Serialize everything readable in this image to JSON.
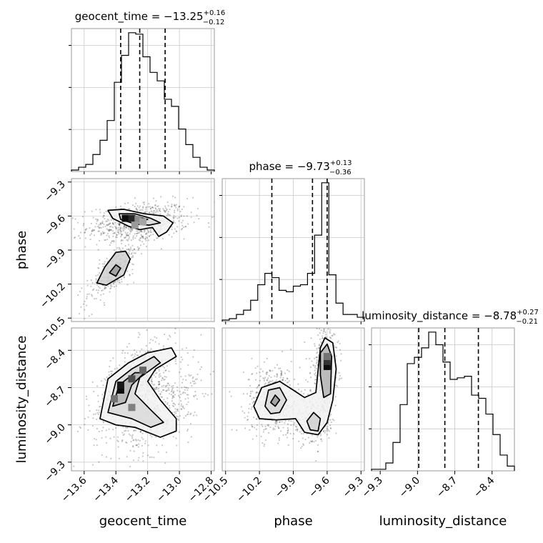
{
  "chart_data": {
    "type": "corner",
    "parameters": [
      "geocent_time",
      "phase",
      "luminosity_distance"
    ],
    "ranges": {
      "geocent_time": [
        -13.68,
        -12.78
      ],
      "phase": [
        -10.53,
        -9.27
      ],
      "luminosity_distance": [
        -9.37,
        -8.22
      ]
    },
    "ticks": {
      "geocent_time": [
        "-13.6",
        "-13.4",
        "-13.2",
        "-13.0",
        "-12.8"
      ],
      "phase": [
        "-10.5",
        "-10.2",
        "-9.9",
        "-9.6",
        "-9.3"
      ],
      "luminosity_distance": [
        "-9.3",
        "-9.0",
        "-8.7",
        "-8.4"
      ]
    },
    "axis_labels": {
      "geocent_time": "geocent_time",
      "phase": "phase",
      "luminosity_distance": "luminosity_distance"
    },
    "titles": {
      "geocent_time": {
        "name": "geocent_time",
        "median": "−13.25",
        "plus": "+0.16",
        "minus": "−0.12"
      },
      "phase": {
        "name": "phase",
        "median": "−9.73",
        "plus": "+0.13",
        "minus": "−0.36"
      },
      "luminosity_distance": {
        "name": "luminosity_distance",
        "median": "−8.78",
        "plus": "+0.27",
        "minus": "−0.21"
      }
    },
    "quantiles": {
      "geocent_time": [
        -13.37,
        -13.25,
        -13.09
      ],
      "phase": [
        -10.09,
        -9.73,
        -9.6
      ],
      "luminosity_distance": [
        -8.99,
        -8.78,
        -8.51
      ]
    },
    "histograms": {
      "geocent_time": {
        "edges": [
          -13.68,
          -13.635,
          -13.59,
          -13.545,
          -13.5,
          -13.455,
          -13.41,
          -13.365,
          -13.32,
          -13.275,
          -13.23,
          -13.185,
          -13.14,
          -13.095,
          -13.05,
          -13.005,
          -12.96,
          -12.915,
          -12.87,
          -12.825,
          -12.78
        ],
        "counts": [
          0.01,
          0.03,
          0.05,
          0.12,
          0.22,
          0.36,
          0.63,
          0.82,
          0.98,
          0.97,
          0.81,
          0.7,
          0.64,
          0.51,
          0.46,
          0.3,
          0.19,
          0.1,
          0.03,
          0.01
        ]
      },
      "phase": {
        "edges": [
          -10.53,
          -10.467,
          -10.404,
          -10.341,
          -10.278,
          -10.215,
          -10.152,
          -10.089,
          -10.026,
          -9.963,
          -9.9,
          -9.837,
          -9.774,
          -9.711,
          -9.648,
          -9.585,
          -9.522,
          -9.459,
          -9.396,
          -9.333,
          -9.27
        ],
        "counts": [
          0.01,
          0.02,
          0.05,
          0.08,
          0.15,
          0.26,
          0.34,
          0.31,
          0.22,
          0.21,
          0.25,
          0.26,
          0.34,
          0.61,
          0.98,
          0.33,
          0.13,
          0.05,
          0.05,
          0.03
        ]
      },
      "luminosity_distance": {
        "edges": [
          -9.37,
          -9.3125,
          -9.255,
          -9.1975,
          -9.14,
          -9.0825,
          -9.025,
          -8.9675,
          -8.91,
          -8.8525,
          -8.795,
          -8.7375,
          -8.68,
          -8.6225,
          -8.565,
          -8.5075,
          -8.45,
          -8.3925,
          -8.335,
          -8.2775,
          -8.22
        ],
        "counts": [
          0.01,
          0.01,
          0.05,
          0.18,
          0.42,
          0.68,
          0.72,
          0.78,
          0.88,
          0.8,
          0.69,
          0.58,
          0.59,
          0.6,
          0.48,
          0.46,
          0.36,
          0.23,
          0.1,
          0.03
        ]
      }
    },
    "pairs": [
      {
        "x": "geocent_time",
        "y": "phase",
        "cloud": [
          {
            "cx": -13.26,
            "cy": -9.66,
            "sx": 0.16,
            "sy": 0.09,
            "rho": 0.25,
            "n": 650
          },
          {
            "cx": -13.41,
            "cy": -10.08,
            "sx": 0.09,
            "sy": 0.15,
            "rho": 0.8,
            "n": 300
          }
        ],
        "blocks": [
          {
            "x": -13.34,
            "y": -9.62,
            "v": 0.95
          },
          {
            "x": -13.3,
            "y": -9.62,
            "v": 0.85
          },
          {
            "x": -13.26,
            "y": -9.63,
            "v": 0.45
          },
          {
            "x": -13.23,
            "y": -9.65,
            "v": 0.35
          },
          {
            "x": -13.28,
            "y": -9.68,
            "v": 0.4
          }
        ],
        "contours": [
          [
            [
              -13.45,
              -9.55
            ],
            [
              -13.35,
              -9.54
            ],
            [
              -13.22,
              -9.58
            ],
            [
              -13.1,
              -9.6
            ],
            [
              -13.04,
              -9.66
            ],
            [
              -13.08,
              -9.74
            ],
            [
              -13.13,
              -9.78
            ],
            [
              -13.17,
              -9.7
            ],
            [
              -13.25,
              -9.72
            ],
            [
              -13.32,
              -9.69
            ],
            [
              -13.42,
              -9.62
            ]
          ],
          [
            [
              -13.38,
              -9.58
            ],
            [
              -13.28,
              -9.58
            ],
            [
              -13.18,
              -9.62
            ],
            [
              -13.12,
              -9.66
            ],
            [
              -13.19,
              -9.68
            ],
            [
              -13.28,
              -9.67
            ],
            [
              -13.37,
              -9.63
            ]
          ],
          [
            [
              -13.36,
              -9.6
            ],
            [
              -13.28,
              -9.6
            ],
            [
              -13.2,
              -9.63
            ],
            [
              -13.25,
              -9.65
            ],
            [
              -13.33,
              -9.64
            ]
          ],
          [
            [
              -13.52,
              -10.19
            ],
            [
              -13.46,
              -10.21
            ],
            [
              -13.35,
              -10.12
            ],
            [
              -13.31,
              -9.98
            ],
            [
              -13.34,
              -9.91
            ],
            [
              -13.4,
              -9.92
            ],
            [
              -13.47,
              -10.05
            ]
          ],
          [
            [
              -13.44,
              -10.1
            ],
            [
              -13.4,
              -10.13
            ],
            [
              -13.37,
              -10.06
            ],
            [
              -13.4,
              -10.03
            ]
          ]
        ]
      },
      {
        "x": "geocent_time",
        "y": "luminosity_distance",
        "cloud": [
          {
            "cx": -13.28,
            "cy": -8.7,
            "sx": 0.13,
            "sy": 0.2,
            "rho": 0.55,
            "n": 700
          },
          {
            "cx": -13.1,
            "cy": -8.9,
            "sx": 0.12,
            "sy": 0.18,
            "rho": 0.6,
            "n": 350
          }
        ],
        "blocks": [
          {
            "x": -13.37,
            "y": -8.72,
            "v": 0.95
          },
          {
            "x": -13.37,
            "y": -8.68,
            "v": 0.9
          },
          {
            "x": -13.3,
            "y": -8.63,
            "v": 0.7
          },
          {
            "x": -13.23,
            "y": -8.56,
            "v": 0.6
          },
          {
            "x": -13.41,
            "y": -8.79,
            "v": 0.55
          },
          {
            "x": -13.3,
            "y": -8.86,
            "v": 0.5
          }
        ],
        "contours": [
          [
            [
              -13.5,
              -8.95
            ],
            [
              -13.45,
              -8.63
            ],
            [
              -13.32,
              -8.5
            ],
            [
              -13.2,
              -8.42
            ],
            [
              -13.05,
              -8.38
            ],
            [
              -13.02,
              -8.45
            ],
            [
              -13.15,
              -8.55
            ],
            [
              -13.2,
              -8.65
            ],
            [
              -13.12,
              -8.8
            ],
            [
              -13.02,
              -8.95
            ],
            [
              -13.02,
              -9.05
            ],
            [
              -13.12,
              -9.1
            ],
            [
              -13.28,
              -9.02
            ],
            [
              -13.4,
              -9.0
            ]
          ],
          [
            [
              -13.45,
              -8.9
            ],
            [
              -13.4,
              -8.65
            ],
            [
              -13.3,
              -8.55
            ],
            [
              -13.16,
              -8.45
            ],
            [
              -13.12,
              -8.5
            ],
            [
              -13.25,
              -8.62
            ],
            [
              -13.28,
              -8.75
            ],
            [
              -13.18,
              -8.88
            ],
            [
              -13.1,
              -8.98
            ],
            [
              -13.18,
              -9.02
            ],
            [
              -13.3,
              -8.95
            ]
          ],
          [
            [
              -13.42,
              -8.85
            ],
            [
              -13.38,
              -8.68
            ],
            [
              -13.28,
              -8.58
            ],
            [
              -13.22,
              -8.58
            ],
            [
              -13.3,
              -8.68
            ],
            [
              -13.34,
              -8.82
            ]
          ]
        ]
      },
      {
        "x": "phase",
        "y": "luminosity_distance",
        "cloud": [
          {
            "cx": -10.08,
            "cy": -8.8,
            "sx": 0.12,
            "sy": 0.14,
            "rho": 0.0,
            "n": 500
          },
          {
            "cx": -9.62,
            "cy": -8.55,
            "sx": 0.06,
            "sy": 0.16,
            "rho": 0.1,
            "n": 450
          },
          {
            "cx": -9.72,
            "cy": -8.98,
            "sx": 0.1,
            "sy": 0.09,
            "rho": 0.0,
            "n": 250
          }
        ],
        "blocks": [
          {
            "x": -9.6,
            "y": -8.53,
            "v": 0.95
          },
          {
            "x": -9.6,
            "y": -8.49,
            "v": 0.8
          },
          {
            "x": -9.6,
            "y": -8.45,
            "v": 0.55
          }
        ],
        "contours": [
          [
            [
              -10.25,
              -8.85
            ],
            [
              -10.18,
              -8.7
            ],
            [
              -10.02,
              -8.65
            ],
            [
              -9.9,
              -8.72
            ],
            [
              -9.8,
              -8.78
            ],
            [
              -9.7,
              -8.74
            ],
            [
              -9.66,
              -8.38
            ],
            [
              -9.62,
              -8.3
            ],
            [
              -9.55,
              -8.34
            ],
            [
              -9.52,
              -8.55
            ],
            [
              -9.55,
              -8.8
            ],
            [
              -9.6,
              -8.98
            ],
            [
              -9.68,
              -9.08
            ],
            [
              -9.8,
              -9.06
            ],
            [
              -9.88,
              -8.95
            ],
            [
              -10.05,
              -8.96
            ],
            [
              -10.2,
              -8.95
            ]
          ],
          [
            [
              -10.15,
              -8.85
            ],
            [
              -10.12,
              -8.72
            ],
            [
              -10.02,
              -8.7
            ],
            [
              -9.96,
              -8.8
            ],
            [
              -10.02,
              -8.9
            ],
            [
              -10.1,
              -8.91
            ]
          ],
          [
            [
              -9.66,
              -8.42
            ],
            [
              -9.6,
              -8.35
            ],
            [
              -9.56,
              -8.45
            ],
            [
              -9.57,
              -8.75
            ],
            [
              -9.63,
              -8.78
            ],
            [
              -9.66,
              -8.6
            ]
          ],
          [
            [
              -9.78,
              -8.97
            ],
            [
              -9.72,
              -8.9
            ],
            [
              -9.66,
              -8.95
            ],
            [
              -9.68,
              -9.05
            ],
            [
              -9.75,
              -9.04
            ]
          ],
          [
            [
              -10.1,
              -8.82
            ],
            [
              -10.06,
              -8.76
            ],
            [
              -10.02,
              -8.8
            ],
            [
              -10.06,
              -8.85
            ]
          ]
        ]
      }
    ]
  }
}
